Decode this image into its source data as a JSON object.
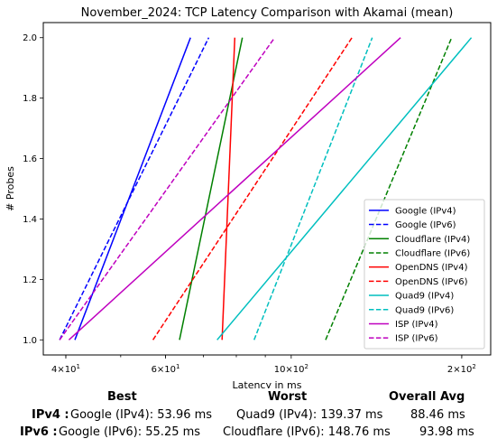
{
  "chart_data": {
    "type": "line",
    "title": "November_2024: TCP Latency Comparison with Akamai (mean)",
    "xlabel": "Latency in ms",
    "ylabel": "# Probes",
    "xscale": "log",
    "xlim": [
      36.5,
      225
    ],
    "ylim": [
      0.95,
      2.05
    ],
    "x_ticks": [
      {
        "value": 40,
        "base": "4",
        "exp": "1"
      },
      {
        "value": 60,
        "base": "6",
        "exp": "1"
      },
      {
        "value": 100,
        "base": "10",
        "exp": "2"
      },
      {
        "value": 200,
        "base": "2",
        "exp": "2"
      }
    ],
    "y_ticks": [
      "1.0",
      "1.2",
      "1.4",
      "1.6",
      "1.8",
      "2.0"
    ],
    "grid": false,
    "legend_position": "lower right",
    "series": [
      {
        "name": "Google (IPv4)",
        "color": "#0000ff",
        "dashed": false,
        "x": [
          41.5,
          66.4
        ],
        "y": [
          1.0,
          2.0
        ]
      },
      {
        "name": "Google (IPv6)",
        "color": "#0000ff",
        "dashed": true,
        "x": [
          39.0,
          71.5
        ],
        "y": [
          1.0,
          2.0
        ]
      },
      {
        "name": "Cloudflare (IPv4)",
        "color": "#008000",
        "dashed": false,
        "x": [
          63.5,
          82.0
        ],
        "y": [
          1.0,
          2.0
        ]
      },
      {
        "name": "Cloudflare (IPv6)",
        "color": "#008000",
        "dashed": true,
        "x": [
          115.0,
          192.0
        ],
        "y": [
          1.0,
          2.0
        ]
      },
      {
        "name": "OpenDNS (IPv4)",
        "color": "#ff0000",
        "dashed": false,
        "x": [
          75.5,
          79.5
        ],
        "y": [
          1.0,
          2.0
        ]
      },
      {
        "name": "OpenDNS (IPv6)",
        "color": "#ff0000",
        "dashed": true,
        "x": [
          57.0,
          128.0
        ],
        "y": [
          1.0,
          2.0
        ]
      },
      {
        "name": "Quad9 (IPv4)",
        "color": "#00bfbf",
        "dashed": false,
        "x": [
          74.0,
          208.0
        ],
        "y": [
          1.0,
          2.0
        ]
      },
      {
        "name": "Quad9 (IPv6)",
        "color": "#00bfbf",
        "dashed": true,
        "x": [
          86.0,
          139.0
        ],
        "y": [
          1.0,
          2.0
        ]
      },
      {
        "name": "ISP (IPv4)",
        "color": "#bf00bf",
        "dashed": false,
        "x": [
          40.5,
          156.0
        ],
        "y": [
          1.0,
          2.0
        ]
      },
      {
        "name": "ISP (IPv6)",
        "color": "#bf00bf",
        "dashed": true,
        "x": [
          39.0,
          93.5
        ],
        "y": [
          1.0,
          2.0
        ]
      }
    ]
  },
  "stats": {
    "headers": {
      "best": "Best",
      "worst": "Worst",
      "avg": "Overall Avg"
    },
    "rows": [
      {
        "label": "IPv4 :",
        "best": "Google (IPv4): 53.96 ms",
        "worst": "Quad9 (IPv4): 139.37 ms",
        "avg": "88.46 ms"
      },
      {
        "label": "IPv6 :",
        "best": "Google (IPv6): 55.25 ms",
        "worst": "Cloudflare (IPv6): 148.76 ms",
        "avg": "93.98 ms"
      }
    ]
  }
}
